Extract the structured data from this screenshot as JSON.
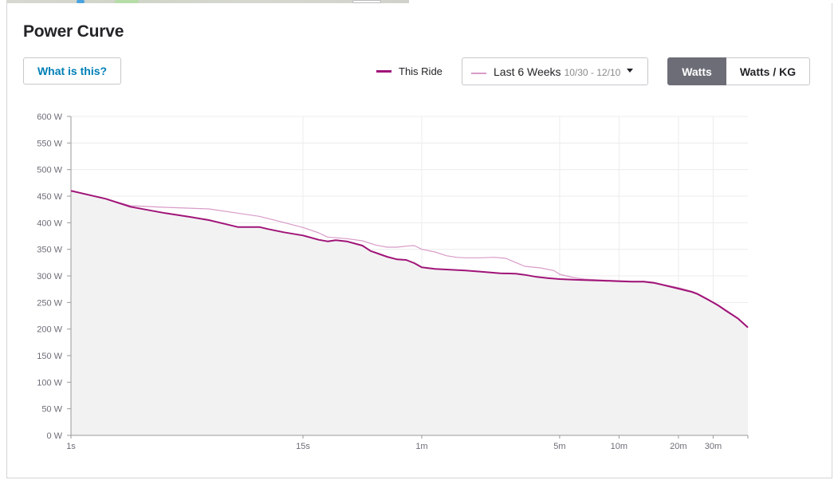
{
  "page": {
    "title": "Power Curve",
    "help_label": "What is this?",
    "legend_this_ride": "This Ride",
    "range_label": "Last 6 Weeks",
    "range_dates": "10/30 - 12/10",
    "toggle_watts": "Watts",
    "toggle_wkg": "Watts / KG"
  },
  "colors": {
    "this_ride": "#a01478",
    "last_6_weeks": "#d89bc8",
    "area_fill": "#f2f2f2",
    "grid": "#ececec",
    "accent_link": "#007fb6",
    "toggle_active": "#6d6d78"
  },
  "chart_data": {
    "type": "line",
    "x_scale": "log",
    "ylim": [
      0,
      600
    ],
    "xlim_seconds": [
      1,
      2700
    ],
    "y_ticks": [
      {
        "value": 0,
        "label": "0 W"
      },
      {
        "value": 50,
        "label": "50 W"
      },
      {
        "value": 100,
        "label": "100 W"
      },
      {
        "value": 150,
        "label": "150 W"
      },
      {
        "value": 200,
        "label": "200 W"
      },
      {
        "value": 250,
        "label": "250 W"
      },
      {
        "value": 300,
        "label": "300 W"
      },
      {
        "value": 350,
        "label": "350 W"
      },
      {
        "value": 400,
        "label": "400 W"
      },
      {
        "value": 450,
        "label": "450 W"
      },
      {
        "value": 500,
        "label": "500 W"
      },
      {
        "value": 550,
        "label": "550 W"
      },
      {
        "value": 600,
        "label": "600 W"
      }
    ],
    "x_ticks": [
      {
        "value": 1,
        "label": "1s"
      },
      {
        "value": 15,
        "label": "15s"
      },
      {
        "value": 60,
        "label": "1m"
      },
      {
        "value": 300,
        "label": "5m"
      },
      {
        "value": 600,
        "label": "10m"
      },
      {
        "value": 1200,
        "label": "20m"
      },
      {
        "value": 1800,
        "label": "30m"
      }
    ],
    "grid": true,
    "legend_position": "top",
    "series": [
      {
        "name": "This Ride",
        "points": [
          [
            1,
            460
          ],
          [
            1.5,
            445
          ],
          [
            2,
            430
          ],
          [
            3,
            418
          ],
          [
            4,
            411
          ],
          [
            5,
            405
          ],
          [
            6,
            398
          ],
          [
            7,
            392
          ],
          [
            9,
            392
          ],
          [
            10,
            388
          ],
          [
            12,
            382
          ],
          [
            15,
            376
          ],
          [
            18,
            368
          ],
          [
            20,
            365
          ],
          [
            22,
            367
          ],
          [
            25,
            365
          ],
          [
            28,
            360
          ],
          [
            30,
            357
          ],
          [
            33,
            347
          ],
          [
            36,
            342
          ],
          [
            40,
            336
          ],
          [
            45,
            331
          ],
          [
            50,
            330
          ],
          [
            55,
            324
          ],
          [
            60,
            316
          ],
          [
            70,
            313
          ],
          [
            80,
            312
          ],
          [
            100,
            310
          ],
          [
            120,
            308
          ],
          [
            150,
            305
          ],
          [
            180,
            304
          ],
          [
            200,
            302
          ],
          [
            230,
            298
          ],
          [
            260,
            296
          ],
          [
            300,
            294
          ],
          [
            350,
            293
          ],
          [
            400,
            292
          ],
          [
            500,
            291
          ],
          [
            600,
            290
          ],
          [
            700,
            289
          ],
          [
            800,
            289
          ],
          [
            900,
            287
          ],
          [
            1000,
            283
          ],
          [
            1200,
            276
          ],
          [
            1400,
            270
          ],
          [
            1500,
            266
          ],
          [
            1700,
            255
          ],
          [
            1900,
            245
          ],
          [
            2100,
            234
          ],
          [
            2400,
            220
          ],
          [
            2700,
            203
          ]
        ]
      },
      {
        "name": "Last 6 Weeks",
        "points": [
          [
            1,
            461
          ],
          [
            1.5,
            445
          ],
          [
            2,
            432
          ],
          [
            3,
            429
          ],
          [
            5,
            426
          ],
          [
            7,
            418
          ],
          [
            9,
            412
          ],
          [
            11,
            404
          ],
          [
            15,
            391
          ],
          [
            18,
            381
          ],
          [
            20,
            373
          ],
          [
            25,
            370
          ],
          [
            30,
            366
          ],
          [
            35,
            358
          ],
          [
            40,
            354
          ],
          [
            45,
            354
          ],
          [
            50,
            356
          ],
          [
            55,
            357
          ],
          [
            60,
            350
          ],
          [
            70,
            345
          ],
          [
            80,
            338
          ],
          [
            90,
            335
          ],
          [
            100,
            334
          ],
          [
            120,
            334
          ],
          [
            140,
            335
          ],
          [
            160,
            333
          ],
          [
            180,
            325
          ],
          [
            200,
            318
          ],
          [
            240,
            315
          ],
          [
            280,
            310
          ],
          [
            300,
            303
          ],
          [
            350,
            297
          ],
          [
            400,
            294
          ],
          [
            500,
            292
          ],
          [
            600,
            291
          ],
          [
            700,
            290
          ],
          [
            800,
            290
          ],
          [
            900,
            288
          ],
          [
            1000,
            284
          ],
          [
            1200,
            278
          ],
          [
            1400,
            271
          ],
          [
            1500,
            267
          ],
          [
            1700,
            256
          ],
          [
            1900,
            246
          ],
          [
            2100,
            235
          ],
          [
            2400,
            221
          ],
          [
            2700,
            204
          ]
        ]
      }
    ]
  }
}
